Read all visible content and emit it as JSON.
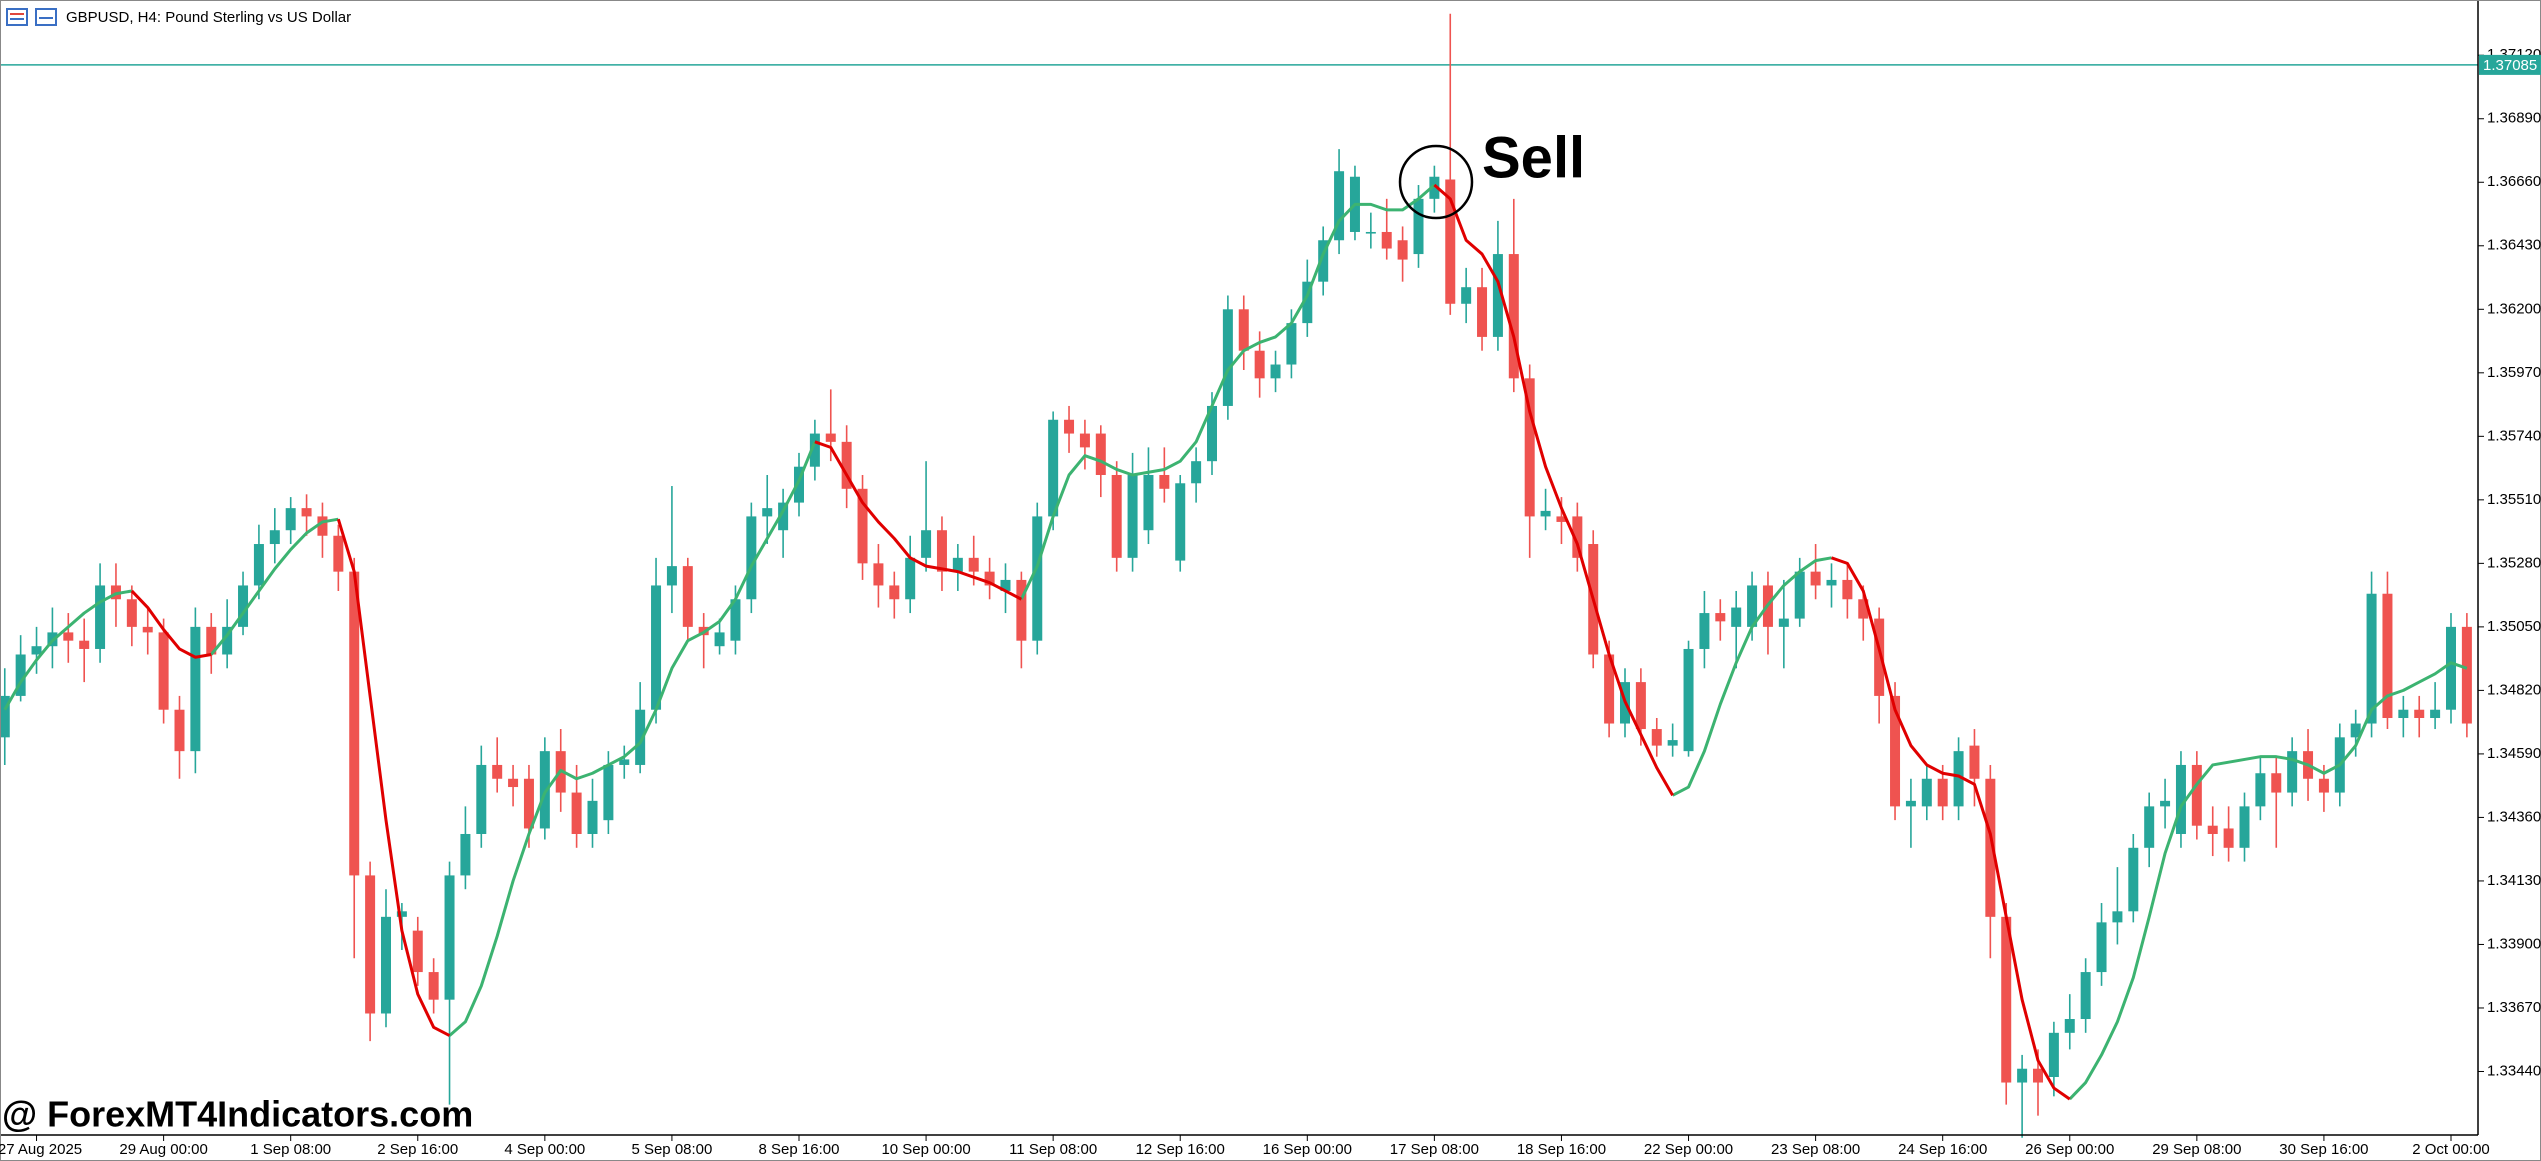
{
  "chart_data": {
    "type": "candlestick",
    "title": "GBPUSD, H4:  Pound Sterling vs US Dollar",
    "annotation": "Sell",
    "watermark": "@ ForexMT4Indicators.com",
    "current_price": 1.37085,
    "current_price_color": "#26a69a",
    "up_color": "#26a69a",
    "down_color": "#ef5350",
    "ylim": [
      1.3321,
      1.3732
    ],
    "yticks": [
      {
        "value": 1.3712,
        "label": "1.37120"
      },
      {
        "value": 1.3689,
        "label": "1.36890"
      },
      {
        "value": 1.3666,
        "label": "1.36660"
      },
      {
        "value": 1.3643,
        "label": "1.36430"
      },
      {
        "value": 1.362,
        "label": "1.36200"
      },
      {
        "value": 1.3597,
        "label": "1.35970"
      },
      {
        "value": 1.3574,
        "label": "1.35740"
      },
      {
        "value": 1.3551,
        "label": "1.35510"
      },
      {
        "value": 1.3528,
        "label": "1.35280"
      },
      {
        "value": 1.3505,
        "label": "1.35050"
      },
      {
        "value": 1.3482,
        "label": "1.34820"
      },
      {
        "value": 1.3459,
        "label": "1.34590"
      },
      {
        "value": 1.3436,
        "label": "1.34360"
      },
      {
        "value": 1.3413,
        "label": "1.34130"
      },
      {
        "value": 1.339,
        "label": "1.33900"
      },
      {
        "value": 1.3367,
        "label": "1.33670"
      },
      {
        "value": 1.3344,
        "label": "1.33440"
      }
    ],
    "categories": [
      null,
      null,
      "27 Aug 2025",
      null,
      null,
      null,
      null,
      null,
      null,
      null,
      "29 Aug 00:00",
      null,
      null,
      null,
      null,
      null,
      null,
      null,
      "1 Sep 08:00",
      null,
      null,
      null,
      null,
      null,
      null,
      null,
      "2 Sep 16:00",
      null,
      null,
      null,
      null,
      null,
      null,
      null,
      "4 Sep 00:00",
      null,
      null,
      null,
      null,
      null,
      null,
      null,
      "5 Sep 08:00",
      null,
      null,
      null,
      null,
      null,
      null,
      null,
      "8 Sep 16:00",
      null,
      null,
      null,
      null,
      null,
      null,
      null,
      "10 Sep 00:00",
      null,
      null,
      null,
      null,
      null,
      null,
      null,
      "11 Sep 08:00",
      null,
      null,
      null,
      null,
      null,
      null,
      null,
      "12 Sep 16:00",
      null,
      null,
      null,
      null,
      null,
      null,
      null,
      "16 Sep 00:00",
      null,
      null,
      null,
      null,
      null,
      null,
      null,
      "17 Sep 08:00",
      null,
      null,
      null,
      null,
      null,
      null,
      null,
      "18 Sep 16:00",
      null,
      null,
      null,
      null,
      null,
      null,
      null,
      "22 Sep 00:00",
      null,
      null,
      null,
      null,
      null,
      null,
      null,
      "23 Sep 08:00",
      null,
      null,
      null,
      null,
      null,
      null,
      null,
      "24 Sep 16:00",
      null,
      null,
      null,
      null,
      null,
      null,
      null,
      "26 Sep 00:00",
      null,
      null,
      null,
      null,
      null,
      null,
      null,
      "29 Sep 08:00",
      null,
      null,
      null,
      null,
      null,
      null,
      null,
      "30 Sep 16:00",
      null,
      null,
      null,
      null,
      null,
      null,
      null,
      "2 Oct 00:00",
      null
    ],
    "open": [
      1.3465,
      1.348,
      1.3495,
      1.3498,
      1.3503,
      1.35,
      1.3497,
      1.352,
      1.3515,
      1.3505,
      1.3503,
      1.3475,
      1.346,
      1.3505,
      1.3495,
      1.3505,
      1.352,
      1.3535,
      1.354,
      1.3548,
      1.3545,
      1.3538,
      1.3525,
      1.3415,
      1.3365,
      1.34,
      1.3395,
      1.338,
      1.337,
      1.3415,
      1.343,
      1.3455,
      1.345,
      1.345,
      1.3432,
      1.346,
      1.3445,
      1.343,
      1.3435,
      1.3455,
      1.3455,
      1.3475,
      1.352,
      1.3527,
      1.3505,
      1.3498,
      1.35,
      1.3515,
      1.3545,
      1.354,
      1.355,
      1.3563,
      1.3575,
      1.3572,
      1.3555,
      1.3528,
      1.352,
      1.3515,
      1.353,
      1.354,
      1.3525,
      1.353,
      1.3525,
      1.3518,
      1.3522,
      1.35,
      1.3545,
      1.358,
      1.3575,
      1.3575,
      1.356,
      1.353,
      1.354,
      1.356,
      1.3529,
      1.3557,
      1.3565,
      1.3585,
      1.362,
      1.3605,
      1.3595,
      1.36,
      1.3615,
      1.363,
      1.3645,
      1.3648,
      1.3648,
      1.3648,
      1.3645,
      1.364,
      1.366,
      1.3667,
      1.3622,
      1.3628,
      1.361,
      1.364,
      1.3595,
      1.3545,
      1.3545,
      1.3545,
      1.3535,
      1.3495,
      1.347,
      1.3485,
      1.3468,
      1.3462,
      1.346,
      1.3497,
      1.351,
      1.3505,
      1.3505,
      1.352,
      1.3505,
      1.3508,
      1.3525,
      1.352,
      1.3522,
      1.3515,
      1.3508,
      1.348,
      1.344,
      1.344,
      1.345,
      1.344,
      1.3462,
      1.345,
      1.34,
      1.334,
      1.3345,
      1.3342,
      1.3358,
      1.3363,
      1.338,
      1.3398,
      1.3402,
      1.3425,
      1.344,
      1.343,
      1.3455,
      1.3433,
      1.3432,
      1.3425,
      1.344,
      1.3452,
      1.3445,
      1.346,
      1.345,
      1.3445,
      1.3465,
      1.347,
      1.3517,
      1.3472,
      1.3475,
      1.3472,
      1.3475,
      1.3505
    ],
    "high": [
      1.349,
      1.3502,
      1.3505,
      1.3512,
      1.351,
      1.3508,
      1.3528,
      1.3528,
      1.352,
      1.3512,
      1.3508,
      1.348,
      1.3512,
      1.351,
      1.3515,
      1.3525,
      1.3542,
      1.3548,
      1.3552,
      1.3553,
      1.355,
      1.3542,
      1.353,
      1.342,
      1.341,
      1.3405,
      1.34,
      1.3385,
      1.342,
      1.344,
      1.3462,
      1.3465,
      1.3455,
      1.3455,
      1.3465,
      1.3468,
      1.3455,
      1.345,
      1.346,
      1.3462,
      1.3485,
      1.353,
      1.3556,
      1.353,
      1.351,
      1.3508,
      1.352,
      1.355,
      1.356,
      1.3555,
      1.3568,
      1.358,
      1.3591,
      1.3578,
      1.356,
      1.3535,
      1.3525,
      1.3538,
      1.3565,
      1.3545,
      1.3535,
      1.3538,
      1.353,
      1.3528,
      1.3525,
      1.355,
      1.3583,
      1.3585,
      1.358,
      1.3578,
      1.3565,
      1.3568,
      1.357,
      1.357,
      1.356,
      1.357,
      1.359,
      1.3625,
      1.3625,
      1.3612,
      1.3605,
      1.362,
      1.3638,
      1.365,
      1.3678,
      1.3672,
      1.3655,
      1.366,
      1.365,
      1.3665,
      1.3672,
      1.3727,
      1.3635,
      1.3635,
      1.3652,
      1.366,
      1.36,
      1.3555,
      1.3552,
      1.355,
      1.354,
      1.35,
      1.349,
      1.349,
      1.3472,
      1.347,
      1.35,
      1.3518,
      1.3515,
      1.3518,
      1.3525,
      1.3525,
      1.3522,
      1.353,
      1.3535,
      1.3528,
      1.3528,
      1.352,
      1.3512,
      1.3485,
      1.345,
      1.3455,
      1.3455,
      1.3465,
      1.3468,
      1.3455,
      1.3405,
      1.335,
      1.3352,
      1.3362,
      1.3372,
      1.3385,
      1.3405,
      1.3418,
      1.343,
      1.3445,
      1.345,
      1.346,
      1.346,
      1.344,
      1.344,
      1.3445,
      1.3458,
      1.3458,
      1.3465,
      1.3468,
      1.3455,
      1.347,
      1.3475,
      1.3525,
      1.3525,
      1.348,
      1.348,
      1.3485,
      1.351,
      1.351
    ],
    "low": [
      1.3455,
      1.3478,
      1.3488,
      1.349,
      1.3492,
      1.3485,
      1.3492,
      1.3505,
      1.3498,
      1.3495,
      1.347,
      1.345,
      1.3452,
      1.3488,
      1.349,
      1.3502,
      1.3515,
      1.3528,
      1.3535,
      1.3538,
      1.353,
      1.3518,
      1.3385,
      1.3355,
      1.336,
      1.3388,
      1.3375,
      1.3365,
      1.3332,
      1.341,
      1.3425,
      1.3445,
      1.344,
      1.3425,
      1.3428,
      1.3438,
      1.3425,
      1.3425,
      1.343,
      1.345,
      1.3452,
      1.347,
      1.351,
      1.35,
      1.349,
      1.3495,
      1.3495,
      1.351,
      1.3535,
      1.353,
      1.3545,
      1.3558,
      1.3565,
      1.3548,
      1.3522,
      1.3512,
      1.3508,
      1.351,
      1.3525,
      1.3518,
      1.3518,
      1.352,
      1.3515,
      1.351,
      1.349,
      1.3495,
      1.354,
      1.3568,
      1.3562,
      1.3552,
      1.3525,
      1.3525,
      1.3535,
      1.355,
      1.3525,
      1.355,
      1.356,
      1.358,
      1.3598,
      1.3588,
      1.359,
      1.3595,
      1.361,
      1.3625,
      1.364,
      1.3645,
      1.3642,
      1.3638,
      1.363,
      1.3635,
      1.3655,
      1.3618,
      1.3615,
      1.3605,
      1.3605,
      1.359,
      1.353,
      1.354,
      1.3535,
      1.3525,
      1.349,
      1.3465,
      1.3465,
      1.3462,
      1.3458,
      1.3458,
      1.3458,
      1.349,
      1.35,
      1.349,
      1.35,
      1.3495,
      1.349,
      1.3505,
      1.3515,
      1.3512,
      1.3508,
      1.35,
      1.347,
      1.3435,
      1.3425,
      1.3435,
      1.3435,
      1.3435,
      1.344,
      1.3385,
      1.3332,
      1.332,
      1.3328,
      1.3335,
      1.3352,
      1.3358,
      1.3375,
      1.339,
      1.3398,
      1.3418,
      1.3432,
      1.3425,
      1.3428,
      1.3422,
      1.342,
      1.342,
      1.3435,
      1.3425,
      1.344,
      1.3442,
      1.3438,
      1.344,
      1.3458,
      1.3465,
      1.3468,
      1.3465,
      1.3465,
      1.3468,
      1.347,
      1.3465
    ],
    "close": [
      1.348,
      1.3495,
      1.3498,
      1.3503,
      1.35,
      1.3497,
      1.352,
      1.3515,
      1.3505,
      1.3503,
      1.3475,
      1.346,
      1.3505,
      1.3495,
      1.3505,
      1.352,
      1.3535,
      1.354,
      1.3548,
      1.3545,
      1.3538,
      1.3525,
      1.3415,
      1.3365,
      1.34,
      1.3402,
      1.338,
      1.337,
      1.3415,
      1.343,
      1.3455,
      1.345,
      1.3447,
      1.3432,
      1.346,
      1.3445,
      1.343,
      1.3442,
      1.3455,
      1.3457,
      1.3475,
      1.352,
      1.3527,
      1.3505,
      1.3502,
      1.3503,
      1.3515,
      1.3545,
      1.3548,
      1.355,
      1.3563,
      1.3575,
      1.3572,
      1.3555,
      1.3528,
      1.352,
      1.3515,
      1.353,
      1.354,
      1.3525,
      1.353,
      1.3525,
      1.352,
      1.3522,
      1.35,
      1.3545,
      1.358,
      1.3575,
      1.357,
      1.356,
      1.353,
      1.356,
      1.356,
      1.3555,
      1.3557,
      1.3565,
      1.3585,
      1.362,
      1.3605,
      1.3595,
      1.36,
      1.3615,
      1.363,
      1.3645,
      1.367,
      1.3668,
      1.3648,
      1.3642,
      1.3638,
      1.366,
      1.3668,
      1.3622,
      1.3628,
      1.361,
      1.364,
      1.3595,
      1.3545,
      1.3547,
      1.3543,
      1.353,
      1.3495,
      1.347,
      1.3485,
      1.3468,
      1.3462,
      1.3464,
      1.3497,
      1.351,
      1.3507,
      1.3512,
      1.352,
      1.3505,
      1.3508,
      1.3525,
      1.352,
      1.3522,
      1.3515,
      1.3508,
      1.348,
      1.344,
      1.3442,
      1.345,
      1.344,
      1.346,
      1.345,
      1.34,
      1.334,
      1.3345,
      1.334,
      1.3358,
      1.3363,
      1.338,
      1.3398,
      1.3402,
      1.3425,
      1.344,
      1.3442,
      1.3455,
      1.3433,
      1.343,
      1.3425,
      1.344,
      1.3452,
      1.3445,
      1.346,
      1.345,
      1.3445,
      1.3465,
      1.347,
      1.3517,
      1.3472,
      1.3475,
      1.3472,
      1.3475,
      1.3505,
      1.347
    ],
    "overlays": [
      {
        "color": "#3cb371",
        "values": [
          1.3475,
          1.3485,
          1.3493,
          1.35,
          1.3505,
          1.351,
          1.3514,
          1.3517,
          1.3518,
          null,
          null,
          null,
          null,
          1.3495,
          1.3502,
          1.351,
          1.3518,
          1.3526,
          1.3533,
          1.3539,
          1.3543,
          1.3544,
          null,
          null,
          null,
          null,
          null,
          null,
          1.3357,
          1.3362,
          1.3375,
          1.3393,
          1.3413,
          1.343,
          1.3445,
          1.3453,
          1.345,
          1.3452,
          1.3455,
          1.3458,
          1.3463,
          1.3475,
          1.349,
          1.35,
          1.3503,
          1.3507,
          1.3515,
          1.3527,
          1.3537,
          1.3547,
          1.3558,
          1.3572,
          null,
          null,
          null,
          null,
          null,
          null,
          null,
          null,
          null,
          null,
          null,
          null,
          1.3515,
          1.3527,
          1.3545,
          1.356,
          1.3567,
          1.3565,
          1.3562,
          1.356,
          1.3561,
          1.3562,
          1.3565,
          1.3572,
          1.3585,
          1.3598,
          1.3605,
          1.3608,
          1.361,
          1.3615,
          1.3625,
          1.364,
          1.3652,
          1.3658,
          1.3658,
          1.3656,
          1.3656,
          1.366,
          1.3665,
          null,
          null,
          null,
          null,
          null,
          null,
          null,
          null,
          null,
          null,
          null,
          null,
          null,
          null,
          1.3444,
          1.3447,
          1.346,
          1.3477,
          1.3492,
          1.3505,
          1.3513,
          1.352,
          1.3525,
          1.3529,
          1.353,
          null,
          null,
          null,
          null,
          null,
          null,
          null,
          null,
          null,
          null,
          null,
          null,
          null,
          null,
          1.3334,
          1.334,
          1.335,
          1.3362,
          1.3378,
          1.34,
          1.3423,
          1.344,
          1.3448,
          1.3455,
          1.3456,
          1.3457,
          1.3458,
          1.3458,
          1.3457,
          1.3455,
          1.3452,
          1.3455,
          1.3462,
          1.3475,
          1.348,
          1.3482,
          1.3485,
          1.3488,
          1.3492,
          1.349
        ]
      },
      {
        "color": "#e00000",
        "values": [
          null,
          null,
          null,
          null,
          null,
          null,
          null,
          null,
          1.3518,
          1.3512,
          1.3504,
          1.3497,
          1.3494,
          1.3495,
          null,
          null,
          null,
          null,
          null,
          null,
          null,
          1.3544,
          1.3525,
          1.348,
          1.3435,
          1.3395,
          1.3372,
          1.336,
          1.3357,
          null,
          null,
          null,
          null,
          null,
          null,
          null,
          null,
          null,
          null,
          null,
          null,
          null,
          null,
          null,
          null,
          null,
          null,
          null,
          null,
          null,
          null,
          1.3572,
          1.357,
          1.356,
          1.355,
          1.3543,
          1.3537,
          1.353,
          1.3527,
          1.3526,
          1.3525,
          1.3523,
          1.3521,
          1.3518,
          1.3515,
          null,
          null,
          null,
          null,
          null,
          null,
          null,
          null,
          null,
          null,
          null,
          null,
          null,
          null,
          null,
          null,
          null,
          null,
          null,
          null,
          null,
          null,
          null,
          null,
          null,
          1.3665,
          1.366,
          1.3645,
          1.364,
          1.363,
          1.361,
          1.3583,
          1.3563,
          1.3548,
          1.3535,
          1.3515,
          1.3495,
          1.3478,
          1.3466,
          1.3454,
          1.3444,
          null,
          null,
          null,
          null,
          null,
          null,
          null,
          null,
          null,
          1.353,
          1.3528,
          1.3518,
          1.3497,
          1.3475,
          1.3462,
          1.3455,
          1.3452,
          1.3451,
          1.3448,
          1.343,
          1.34,
          1.337,
          1.3348,
          1.3338,
          1.3334,
          null,
          null,
          null,
          null,
          null,
          null,
          null,
          null,
          null,
          null,
          null,
          null,
          null,
          null,
          null,
          null,
          null,
          null,
          null,
          null,
          null,
          null,
          null,
          null,
          null
        ]
      }
    ]
  }
}
